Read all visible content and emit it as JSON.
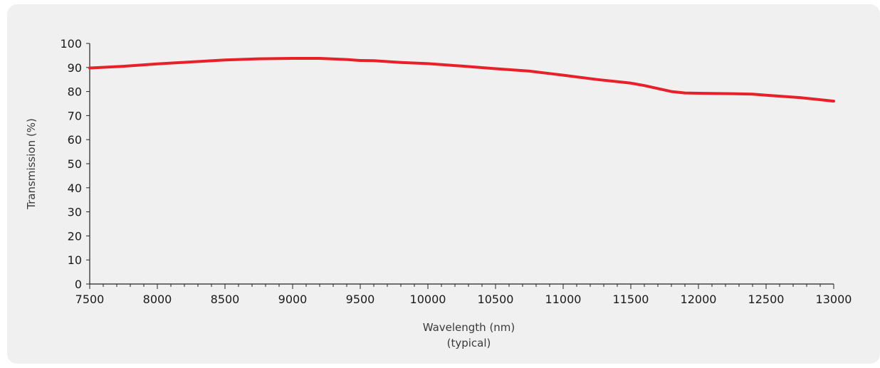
{
  "chart_data": {
    "type": "line",
    "title": "",
    "xlabel": "Wavelength (nm)",
    "xlabel_note": "(typical)",
    "ylabel": "Transmission (%)",
    "xlim": [
      7500,
      13000
    ],
    "ylim": [
      0,
      100
    ],
    "x_ticks": [
      "7500",
      "8000",
      "8500",
      "9000",
      "9500",
      "10000",
      "10500",
      "11000",
      "11500",
      "12000",
      "12500",
      "13000"
    ],
    "y_ticks": [
      "0",
      "10",
      "20",
      "30",
      "40",
      "50",
      "60",
      "70",
      "80",
      "90",
      "100"
    ],
    "grid": false,
    "legend": "none",
    "series": [
      {
        "color": "#e8202a",
        "x": [
          7500,
          7750,
          8000,
          8250,
          8500,
          8750,
          9000,
          9200,
          9400,
          9500,
          9600,
          9800,
          10000,
          10250,
          10500,
          10750,
          10900,
          11000,
          11250,
          11500,
          11600,
          11800,
          11900,
          12000,
          12250,
          12400,
          12500,
          12750,
          13000
        ],
        "y": [
          89.8,
          90.5,
          91.5,
          92.3,
          93.1,
          93.6,
          93.8,
          93.8,
          93.3,
          92.9,
          92.8,
          92.1,
          91.6,
          90.6,
          89.5,
          88.5,
          87.5,
          86.8,
          85.0,
          83.5,
          82.5,
          80.0,
          79.4,
          79.3,
          79.1,
          78.9,
          78.5,
          77.5,
          76.0
        ]
      }
    ]
  }
}
